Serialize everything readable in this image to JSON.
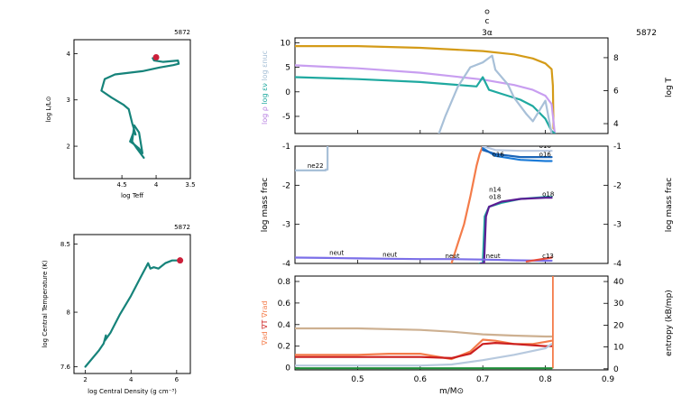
{
  "chart_data": [
    {
      "id": "hr",
      "type": "line",
      "model_number": "5872",
      "xlabel": "log Teff",
      "ylabel": "log L/L⊙",
      "xlim": [
        5.2,
        3.5
      ],
      "ylim": [
        1.3,
        4.3
      ],
      "x_ticks": [
        "4.5",
        "4",
        "3.5"
      ],
      "y_ticks": [
        "2",
        "3",
        "4"
      ],
      "x_tick_values": [
        4.5,
        4.0,
        3.5
      ],
      "y_tick_values": [
        2,
        3,
        4
      ],
      "line_color": "#16837a",
      "series": [
        {
          "x": [
            4.05,
            4.03,
            3.9,
            3.68,
            3.67,
            3.75,
            3.95,
            4.2,
            4.6,
            4.75,
            4.8,
            4.65,
            4.48,
            4.4,
            4.35,
            4.3,
            4.33,
            4.38,
            4.33,
            4.25,
            4.2,
            4.25,
            4.32,
            4.35,
            4.28,
            4.18
          ],
          "y": [
            3.9,
            3.85,
            3.82,
            3.85,
            3.78,
            3.75,
            3.7,
            3.62,
            3.55,
            3.45,
            3.2,
            3.05,
            2.9,
            2.8,
            2.5,
            2.25,
            2.3,
            2.1,
            2.05,
            1.95,
            1.85,
            2.3,
            2.45,
            2.1,
            1.95,
            1.75
          ]
        }
      ],
      "current": {
        "x": 4.0,
        "y": 3.92,
        "color": "#cc1f3a"
      }
    },
    {
      "id": "central",
      "type": "line",
      "model_number": "5872",
      "xlabel": "log Central Density (g cm⁻³)",
      "ylabel": "log Central Temperature (K)",
      "xlim": [
        1.5,
        6.6
      ],
      "ylim": [
        7.55,
        8.57
      ],
      "x_ticks": [
        "2",
        "4",
        "6"
      ],
      "y_ticks": [
        "7.6",
        "8",
        "8.5"
      ],
      "x_tick_values": [
        2,
        4,
        6
      ],
      "y_tick_values": [
        7.6,
        8.0,
        8.5
      ],
      "line_color": "#16837a",
      "series": [
        {
          "x": [
            2.0,
            2.6,
            2.8,
            2.9,
            2.85,
            3.1,
            3.5,
            4.0,
            4.4,
            4.75,
            4.85,
            5.0,
            5.2,
            5.5,
            5.8,
            6.1
          ],
          "y": [
            7.6,
            7.72,
            7.77,
            7.83,
            7.79,
            7.85,
            7.98,
            8.12,
            8.25,
            8.36,
            8.32,
            8.33,
            8.32,
            8.36,
            8.38,
            8.38
          ]
        }
      ],
      "current": {
        "x": 6.15,
        "y": 8.38,
        "color": "#cc1f3a"
      }
    },
    {
      "id": "profile-top",
      "type": "line",
      "model_number": "5872",
      "title": "c",
      "subtitle": "3α",
      "ylabel_left_parts": [
        {
          "text": "log ρ",
          "color": "#b67fe0"
        },
        {
          "text": "log εν",
          "color": "#1fa9a0"
        },
        {
          "text": "log εnuc",
          "color": "#a6bfd6"
        }
      ],
      "ylabel_right": "log T",
      "ylabel_right_color": "#d49b18",
      "xlim": [
        0.4,
        0.9
      ],
      "ylim_left": [
        -8.5,
        11
      ],
      "ylim_right": [
        3.4,
        9.2
      ],
      "y_ticks_left": [
        "-5",
        "0",
        "5",
        "10"
      ],
      "y_tick_values_left": [
        -5,
        0,
        5,
        10
      ],
      "y_ticks_right": [
        "4",
        "6",
        "8"
      ],
      "y_tick_values_right": [
        4,
        6,
        8
      ],
      "series": [
        {
          "name": "log T",
          "axis": "right",
          "color": "#d49b18",
          "x": [
            0.4,
            0.5,
            0.6,
            0.7,
            0.75,
            0.78,
            0.8,
            0.81,
            0.812,
            0.813
          ],
          "y": [
            8.7,
            8.7,
            8.6,
            8.4,
            8.2,
            7.95,
            7.65,
            7.3,
            6.3,
            3.7
          ]
        },
        {
          "name": "log ρ",
          "axis": "left",
          "color": "#c89ef0",
          "x": [
            0.4,
            0.5,
            0.6,
            0.7,
            0.75,
            0.78,
            0.8,
            0.81,
            0.815
          ],
          "y": [
            5.4,
            4.8,
            3.9,
            2.5,
            1.4,
            0.4,
            -0.8,
            -2.5,
            -8.5
          ]
        },
        {
          "name": "log εν",
          "axis": "left",
          "color": "#1fa9a0",
          "x": [
            0.4,
            0.5,
            0.6,
            0.67,
            0.69,
            0.7,
            0.71,
            0.73,
            0.76,
            0.78,
            0.8,
            0.81,
            0.815
          ],
          "y": [
            3.0,
            2.6,
            2.0,
            1.3,
            1.1,
            3.0,
            0.4,
            -0.4,
            -1.6,
            -2.9,
            -5.5,
            -8.0,
            -8.5
          ]
        },
        {
          "name": "log εnuc",
          "axis": "left",
          "color": "#a8c0d8",
          "x": [
            0.63,
            0.64,
            0.66,
            0.68,
            0.7,
            0.715,
            0.72,
            0.74,
            0.75,
            0.77,
            0.78,
            0.8,
            0.81
          ],
          "y": [
            -8.5,
            -5.0,
            1.0,
            5.0,
            6.0,
            7.4,
            4.5,
            1.5,
            -1.2,
            -4.6,
            -6.0,
            -1.8,
            -8.5
          ]
        }
      ]
    },
    {
      "id": "profile-mid",
      "type": "line",
      "ylabel_left": "log mass frac",
      "ylabel_right": "log mass frac",
      "xlim": [
        0.4,
        0.9
      ],
      "ylim": [
        -4,
        -1
      ],
      "y_ticks": [
        "-4",
        "-3",
        "-2",
        "-1"
      ],
      "y_tick_values": [
        -4,
        -3,
        -2,
        -1
      ],
      "series": [
        {
          "name": "ne22",
          "color": "#a8c0d8",
          "x": [
            0.4,
            0.449,
            0.449,
            0.452,
            0.452
          ],
          "y": [
            -1.62,
            -1.62,
            -1.6,
            -1.6,
            -1.0
          ]
        },
        {
          "name": "c13",
          "color": "#f47c4a",
          "x": [
            0.65,
            0.66,
            0.67,
            0.68,
            0.685,
            0.69,
            0.695,
            0.7
          ],
          "y": [
            -4.0,
            -3.5,
            -3.0,
            -2.3,
            -1.9,
            -1.5,
            -1.2,
            -1.0
          ]
        },
        {
          "name": "n14",
          "color": "#1fa9a0",
          "x": [
            0.695,
            0.7,
            0.703,
            0.71,
            0.73,
            0.76,
            0.8,
            0.81
          ],
          "y": [
            -4.0,
            -4.0,
            -2.8,
            -2.55,
            -2.45,
            -2.35,
            -2.3,
            -2.3
          ]
        },
        {
          "name": "o18",
          "color": "#5b1d94",
          "x": [
            0.697,
            0.702,
            0.705,
            0.71,
            0.73,
            0.76,
            0.8,
            0.81
          ],
          "y": [
            -4.0,
            -4.0,
            -2.8,
            -2.55,
            -2.42,
            -2.35,
            -2.32,
            -2.32
          ]
        },
        {
          "name": "o16",
          "color": "#1c7bd8",
          "x": [
            0.7,
            0.72,
            0.76,
            0.8,
            0.81
          ],
          "y": [
            -1.05,
            -1.25,
            -1.35,
            -1.38,
            -1.38
          ]
        },
        {
          "name": "c12",
          "color": "#1a64b8",
          "x": [
            0.7,
            0.72,
            0.76,
            0.8,
            0.81
          ],
          "y": [
            -1.1,
            -1.2,
            -1.28,
            -1.28,
            -1.28
          ]
        },
        {
          "name": "o16b",
          "color": "#b9c8e0",
          "x": [
            0.7,
            0.72,
            0.76,
            0.8,
            0.81
          ],
          "y": [
            -1.0,
            -1.1,
            -1.12,
            -1.12,
            -1.12
          ]
        },
        {
          "name": "neut",
          "color": "#7b6fe8",
          "x": [
            0.4,
            0.45,
            0.5,
            0.55,
            0.6,
            0.65,
            0.7,
            0.75,
            0.8,
            0.81
          ],
          "y": [
            -3.85,
            -3.86,
            -3.87,
            -3.88,
            -3.89,
            -3.89,
            -3.9,
            -3.92,
            -3.93,
            -3.93
          ]
        },
        {
          "name": "c13b",
          "color": "#e64a3a",
          "x": [
            0.77,
            0.79,
            0.81
          ],
          "y": [
            -3.95,
            -3.9,
            -3.85
          ]
        }
      ],
      "labels": [
        {
          "text": "ne22",
          "x": 0.42,
          "y": -1.55,
          "color": "#a8c0d8"
        },
        {
          "text": "o16",
          "x": 0.715,
          "y": -1.26,
          "color": "#1c7bd8"
        },
        {
          "text": "o16",
          "x": 0.79,
          "y": -1.05,
          "color": "#1a64b8"
        },
        {
          "text": "o16",
          "x": 0.79,
          "y": -1.27,
          "color": "#1a64b8"
        },
        {
          "text": "n14",
          "x": 0.71,
          "y": -2.17,
          "color": "#1fa9a0"
        },
        {
          "text": "o18",
          "x": 0.71,
          "y": -2.35,
          "color": "#5b1d94"
        },
        {
          "text": "o18",
          "x": 0.795,
          "y": -2.28,
          "color": "#5b1d94"
        },
        {
          "text": "neut",
          "x": 0.455,
          "y": -3.78,
          "color": "#7b6fe8"
        },
        {
          "text": "neut",
          "x": 0.54,
          "y": -3.83,
          "color": "#7b6fe8"
        },
        {
          "text": "neut",
          "x": 0.64,
          "y": -3.86,
          "color": "#7b6fe8"
        },
        {
          "text": "neut",
          "x": 0.705,
          "y": -3.86,
          "color": "#7b6fe8"
        },
        {
          "text": "c13",
          "x": 0.795,
          "y": -3.86,
          "color": "#e64a3a"
        }
      ]
    },
    {
      "id": "profile-bot",
      "type": "line",
      "xlabel": "m/M⊙",
      "ylabel_left_parts": [
        {
          "text": "∇ad",
          "color": "#f47c4a"
        },
        {
          "text": "∇T",
          "color": "#cc1f1f"
        },
        {
          "text": "∇rad",
          "color": "#f47c4a"
        }
      ],
      "ylabel_right": "entropy (kB/mp)",
      "xlim": [
        0.4,
        0.9
      ],
      "ylim_left": [
        -0.02,
        0.85
      ],
      "ylim_right": [
        -0.5,
        42.5
      ],
      "x_ticks": [
        "0.5",
        "0.6",
        "0.7",
        "0.8",
        "0.9"
      ],
      "x_tick_values": [
        0.5,
        0.6,
        0.7,
        0.8,
        0.9
      ],
      "y_ticks_left": [
        "0",
        "0.2",
        "0.4",
        "0.6",
        "0.8"
      ],
      "y_tick_values_left": [
        0,
        0.2,
        0.4,
        0.6,
        0.8
      ],
      "y_ticks_right": [
        "0",
        "10",
        "20",
        "30",
        "40"
      ],
      "y_tick_values_right": [
        0,
        10,
        20,
        30,
        40
      ],
      "series": [
        {
          "name": "entropy",
          "axis": "right",
          "color": "#cdb091",
          "x": [
            0.4,
            0.5,
            0.6,
            0.65,
            0.7,
            0.75,
            0.8,
            0.81
          ],
          "y": [
            18.5,
            18.5,
            17.8,
            17.0,
            15.8,
            15.2,
            14.8,
            14.8
          ]
        },
        {
          "name": "∇rad",
          "axis": "left",
          "color": "#f47c4a",
          "x": [
            0.4,
            0.45,
            0.5,
            0.55,
            0.6,
            0.65,
            0.68,
            0.7,
            0.72,
            0.75,
            0.78,
            0.8,
            0.81
          ],
          "y": [
            0.12,
            0.12,
            0.12,
            0.13,
            0.13,
            0.08,
            0.15,
            0.26,
            0.25,
            0.22,
            0.22,
            0.24,
            0.25
          ]
        },
        {
          "name": "∇T",
          "axis": "left",
          "color": "#cc1f1f",
          "x": [
            0.4,
            0.5,
            0.6,
            0.65,
            0.68,
            0.7,
            0.72,
            0.75,
            0.8,
            0.81
          ],
          "y": [
            0.1,
            0.1,
            0.1,
            0.09,
            0.13,
            0.22,
            0.23,
            0.22,
            0.2,
            0.2
          ]
        },
        {
          "name": "entropy2",
          "axis": "left",
          "color": "#b7c9de",
          "x": [
            0.4,
            0.5,
            0.6,
            0.65,
            0.7,
            0.75,
            0.8,
            0.81
          ],
          "y": [
            0.02,
            0.02,
            0.02,
            0.03,
            0.07,
            0.12,
            0.18,
            0.22
          ]
        },
        {
          "name": "∇ad",
          "axis": "left",
          "color": "#f47c4a",
          "x": [
            0.812,
            0.812
          ],
          "y": [
            0.0,
            0.85
          ]
        },
        {
          "name": "base",
          "axis": "left",
          "color": "#1f8f3a",
          "x": [
            0.4,
            0.81
          ],
          "y": [
            -0.005,
            -0.005
          ]
        }
      ]
    }
  ]
}
